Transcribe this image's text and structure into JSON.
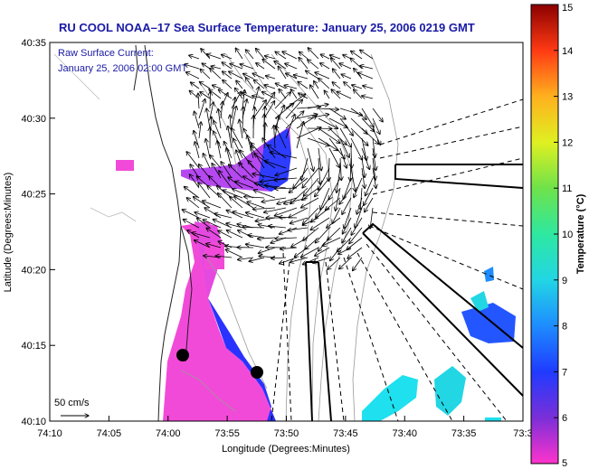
{
  "title": "RU COOL  NOAA–17  Sea Surface Temperature:  January 25, 2006 0219 GMT",
  "overlay": {
    "line1": "Raw Surface Current:",
    "line2": "January 25, 2006 02:00 GMT"
  },
  "scale_label": "50 cm/s",
  "axes": {
    "xlabel": "Longitude (Degrees:Minutes)",
    "ylabel": "Latitude (Degrees:Minutes)",
    "xticks": [
      "74:10",
      "74:05",
      "74:00",
      "73:55",
      "73:50",
      "73:45",
      "73:40",
      "73:35",
      "73:3"
    ],
    "yticks": [
      "40:35",
      "40:30",
      "40:25",
      "40:20",
      "40:15",
      "40:10"
    ]
  },
  "colorbar": {
    "label": "Temperature (°C)",
    "ticks": [
      "15",
      "14",
      "13",
      "12",
      "11",
      "10",
      "9",
      "8",
      "7",
      "6",
      "5"
    ],
    "min": 5,
    "max": 15
  },
  "colors": {
    "title_blue": "#1a1aa6",
    "land_gray": "#888888"
  }
}
